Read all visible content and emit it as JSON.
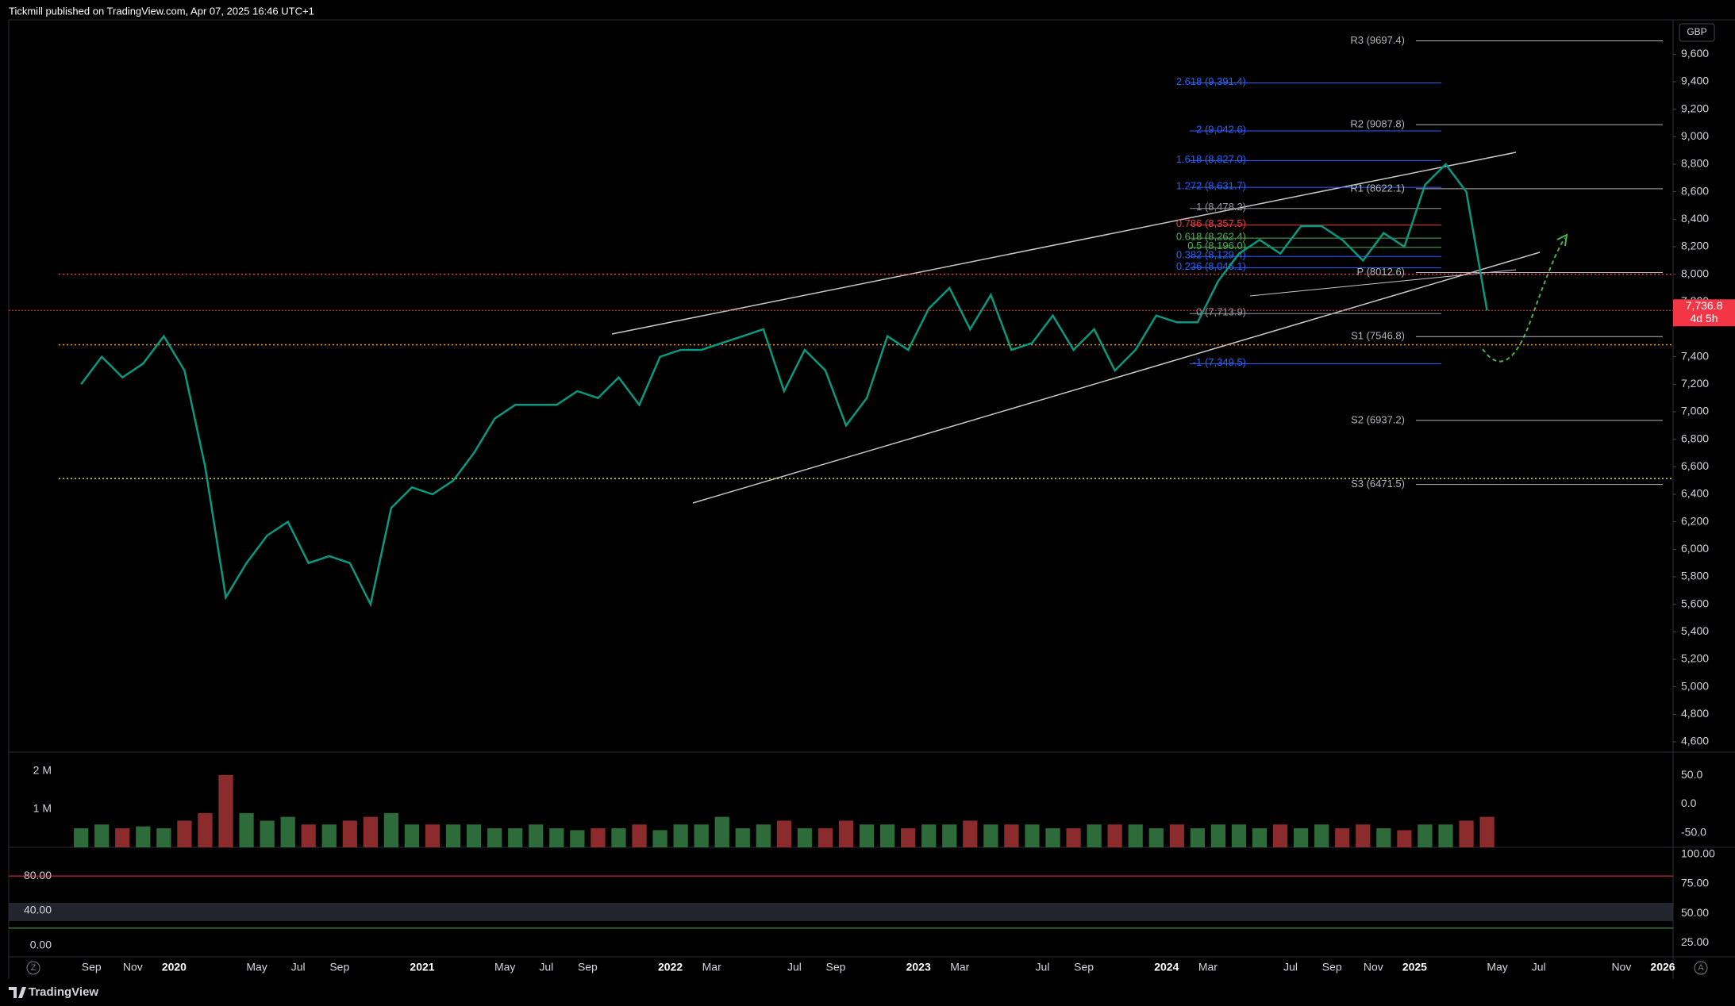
{
  "header": {
    "publisher": "Tickmill published on TradingView.com, Apr 07, 2025 16:46 UTC+1"
  },
  "footer": {
    "brand": "TradingView"
  },
  "controls": {
    "left": "Z",
    "right": "A"
  },
  "chart_data": [
    {
      "type": "line",
      "currency": "GBP",
      "color": "#089981",
      "x": [
        "2019-08",
        "2019-09",
        "2019-10",
        "2019-11",
        "2019-12",
        "2020-01",
        "2020-02",
        "2020-03",
        "2020-04",
        "2020-05",
        "2020-06",
        "2020-07",
        "2020-08",
        "2020-09",
        "2020-10",
        "2020-11",
        "2020-12",
        "2021-01",
        "2021-02",
        "2021-03",
        "2021-04",
        "2021-05",
        "2021-06",
        "2021-07",
        "2021-08",
        "2021-09",
        "2021-10",
        "2021-11",
        "2021-12",
        "2022-01",
        "2022-02",
        "2022-03",
        "2022-04",
        "2022-05",
        "2022-06",
        "2022-07",
        "2022-08",
        "2022-09",
        "2022-10",
        "2022-11",
        "2022-12",
        "2023-01",
        "2023-02",
        "2023-03",
        "2023-04",
        "2023-05",
        "2023-06",
        "2023-07",
        "2023-08",
        "2023-09",
        "2023-10",
        "2023-11",
        "2023-12",
        "2024-01",
        "2024-02",
        "2024-03",
        "2024-04",
        "2024-05",
        "2024-06",
        "2024-07",
        "2024-08",
        "2024-09",
        "2024-10",
        "2024-11",
        "2024-12",
        "2025-01",
        "2025-02",
        "2025-03",
        "2025-04"
      ],
      "values": [
        7200,
        7400,
        7250,
        7350,
        7550,
        7300,
        6600,
        5650,
        5900,
        6100,
        6200,
        5900,
        5950,
        5900,
        5600,
        6300,
        6450,
        6400,
        6500,
        6700,
        6950,
        7050,
        7050,
        7050,
        7150,
        7100,
        7250,
        7050,
        7400,
        7450,
        7450,
        7500,
        7550,
        7600,
        7150,
        7450,
        7300,
        6900,
        7100,
        7550,
        7450,
        7750,
        7900,
        7600,
        7850,
        7450,
        7500,
        7700,
        7450,
        7600,
        7300,
        7450,
        7700,
        7650,
        7650,
        7950,
        8150,
        8250,
        8150,
        8350,
        8350,
        8250,
        8100,
        8300,
        8200,
        8650,
        8800,
        8600,
        7736.8
      ],
      "xlim": [
        "2019-05",
        "2026-01"
      ],
      "xticks": [
        {
          "value": "2019-09",
          "label": "Sep"
        },
        {
          "value": "2019-11",
          "label": "Nov"
        },
        {
          "value": "2020-01",
          "label": "2020"
        },
        {
          "value": "2020-05",
          "label": "May"
        },
        {
          "value": "2020-07",
          "label": "Jul"
        },
        {
          "value": "2020-09",
          "label": "Sep"
        },
        {
          "value": "2021-01",
          "label": "2021"
        },
        {
          "value": "2021-05",
          "label": "May"
        },
        {
          "value": "2021-07",
          "label": "Jul"
        },
        {
          "value": "2021-09",
          "label": "Sep"
        },
        {
          "value": "2022-01",
          "label": "2022"
        },
        {
          "value": "2022-03",
          "label": "Mar"
        },
        {
          "value": "2022-07",
          "label": "Jul"
        },
        {
          "value": "2022-09",
          "label": "Sep"
        },
        {
          "value": "2023-01",
          "label": "2023"
        },
        {
          "value": "2023-03",
          "label": "Mar"
        },
        {
          "value": "2023-07",
          "label": "Jul"
        },
        {
          "value": "2023-09",
          "label": "Sep"
        },
        {
          "value": "2024-01",
          "label": "2024"
        },
        {
          "value": "2024-03",
          "label": "Mar"
        },
        {
          "value": "2024-07",
          "label": "Jul"
        },
        {
          "value": "2024-09",
          "label": "Sep"
        },
        {
          "value": "2024-11",
          "label": "Nov"
        },
        {
          "value": "2025-01",
          "label": "2025"
        },
        {
          "value": "2025-05",
          "label": "May"
        },
        {
          "value": "2025-07",
          "label": "Jul"
        },
        {
          "value": "2025-11",
          "label": "Nov"
        },
        {
          "value": "2026-01",
          "label": "2026"
        }
      ],
      "ylim": [
        4525,
        9850
      ],
      "yticks": [
        {
          "value": 9600,
          "label": "9,600"
        },
        {
          "value": 9400,
          "label": "9,400"
        },
        {
          "value": 9200,
          "label": "9,200"
        },
        {
          "value": 9000,
          "label": "9,000"
        },
        {
          "value": 8800,
          "label": "8,800"
        },
        {
          "value": 8600,
          "label": "8,600"
        },
        {
          "value": 8400,
          "label": "8,400"
        },
        {
          "value": 8200,
          "label": "8,200"
        },
        {
          "value": 8000,
          "label": "8,000"
        },
        {
          "value": 7800,
          "label": "7,800"
        },
        {
          "value": 7400,
          "label": "7,400"
        },
        {
          "value": 7200,
          "label": "7,200"
        },
        {
          "value": 7000,
          "label": "7,000"
        },
        {
          "value": 6800,
          "label": "6,800"
        },
        {
          "value": 6600,
          "label": "6,600"
        },
        {
          "value": 6400,
          "label": "6,400"
        },
        {
          "value": 6200,
          "label": "6,200"
        },
        {
          "value": 6000,
          "label": "6,000"
        },
        {
          "value": 5800,
          "label": "5,800"
        },
        {
          "value": 5600,
          "label": "5,600"
        },
        {
          "value": 5400,
          "label": "5,400"
        },
        {
          "value": 5200,
          "label": "5,200"
        },
        {
          "value": 5000,
          "label": "5,000"
        },
        {
          "value": 4800,
          "label": "4,800"
        },
        {
          "value": 4600,
          "label": "4,600"
        }
      ],
      "last_price": {
        "value": 7736.8,
        "label": "7,736.8",
        "color": "#f23645"
      },
      "countdown": "4d 5h",
      "pivots": [
        {
          "label": "R3 (9697.4)",
          "value": 9697.4,
          "color": "#b2b5be"
        },
        {
          "label": "R2 (9087.8)",
          "value": 9087.8,
          "color": "#b2b5be"
        },
        {
          "label": "R1 (8622.1)",
          "value": 8622.1,
          "color": "#b2b5be"
        },
        {
          "label": "P (8012.6)",
          "value": 8012.6,
          "color": "#b2b5be"
        },
        {
          "label": "S1 (7546.8)",
          "value": 7546.8,
          "color": "#b2b5be"
        },
        {
          "label": "S2 (6937.2)",
          "value": 6937.2,
          "color": "#b2b5be"
        },
        {
          "label": "S3 (6471.5)",
          "value": 6471.5,
          "color": "#b2b5be"
        }
      ],
      "fibonacci": [
        {
          "label": "2.618 (9,391.4)",
          "value": 9391.4,
          "color": "#2962ff"
        },
        {
          "label": "2 (9,042.6)",
          "value": 9042.6,
          "color": "#2962ff"
        },
        {
          "label": "1.618 (8,827.0)",
          "value": 8827.0,
          "color": "#2962ff"
        },
        {
          "label": "1.272 (8,631.7)",
          "value": 8631.7,
          "color": "#2962ff"
        },
        {
          "label": "1 (8,478.2)",
          "value": 8478.2,
          "color": "#9598a1"
        },
        {
          "label": "0.786 (8,357.5)",
          "value": 8357.5,
          "color": "#f23645"
        },
        {
          "label": "0.618 (8,262.4)",
          "value": 8262.4,
          "color": "#4caf50"
        },
        {
          "label": "0.5 (8,196.0)",
          "value": 8196.0,
          "color": "#4caf50"
        },
        {
          "label": "0.382 (8,129.4)",
          "value": 8129.4,
          "color": "#2962ff"
        },
        {
          "label": "0.236 (8,046.1)",
          "value": 8046.1,
          "color": "#2962ff"
        },
        {
          "label": "0 (7,713.9)",
          "value": 7713.9,
          "color": "#9598a1"
        },
        {
          "label": "-1 (7,349.5)",
          "value": 7349.5,
          "color": "#2962ff"
        }
      ],
      "reference_lines": [
        {
          "value": 8000,
          "color": "#f23645"
        },
        {
          "value": 7487,
          "color": "#ff9800"
        },
        {
          "value": 6514,
          "color": "#cddc39"
        }
      ]
    },
    {
      "type": "bar",
      "colors": {
        "up": "#2e6b3a",
        "down": "#8b2b2b"
      },
      "values": [
        0.5,
        0.6,
        0.5,
        0.55,
        0.5,
        0.7,
        0.9,
        1.9,
        0.9,
        0.7,
        0.8,
        0.6,
        0.6,
        0.7,
        0.8,
        0.9,
        0.6,
        0.6,
        0.6,
        0.6,
        0.5,
        0.5,
        0.6,
        0.5,
        0.45,
        0.5,
        0.5,
        0.6,
        0.45,
        0.6,
        0.6,
        0.8,
        0.5,
        0.6,
        0.7,
        0.5,
        0.5,
        0.7,
        0.6,
        0.6,
        0.5,
        0.6,
        0.6,
        0.7,
        0.6,
        0.6,
        0.6,
        0.5,
        0.5,
        0.6,
        0.6,
        0.6,
        0.5,
        0.6,
        0.5,
        0.6,
        0.6,
        0.5,
        0.6,
        0.5,
        0.6,
        0.5,
        0.6,
        0.5,
        0.45,
        0.6,
        0.6,
        0.7,
        0.8
      ],
      "ylim": [
        0,
        2.5
      ],
      "yticks": [
        {
          "value": 1,
          "label": "1 M"
        },
        {
          "value": 2,
          "label": "2 M"
        }
      ],
      "y2lim": [
        -75,
        90
      ],
      "y2ticks": [
        {
          "value": 50,
          "label": "50.0"
        },
        {
          "value": 0,
          "label": "0.0"
        },
        {
          "value": -50,
          "label": "-50.0"
        }
      ]
    },
    {
      "type": "oscillator",
      "ylim": [
        -13,
        113
      ],
      "yticks": [
        {
          "value": 80,
          "label": "80.00"
        },
        {
          "value": 40,
          "label": "40.00"
        },
        {
          "value": 0,
          "label": "0.00"
        }
      ],
      "y2lim": [
        13,
        106
      ],
      "y2ticks": [
        {
          "value": 100,
          "label": "100.00"
        },
        {
          "value": 75,
          "label": "75.00"
        },
        {
          "value": 50,
          "label": "50.00"
        },
        {
          "value": 25,
          "label": "25.00"
        }
      ],
      "reference_lines": [
        {
          "value": 80,
          "color": "#f23645"
        },
        {
          "value": 20,
          "color": "#4caf50"
        }
      ]
    }
  ]
}
